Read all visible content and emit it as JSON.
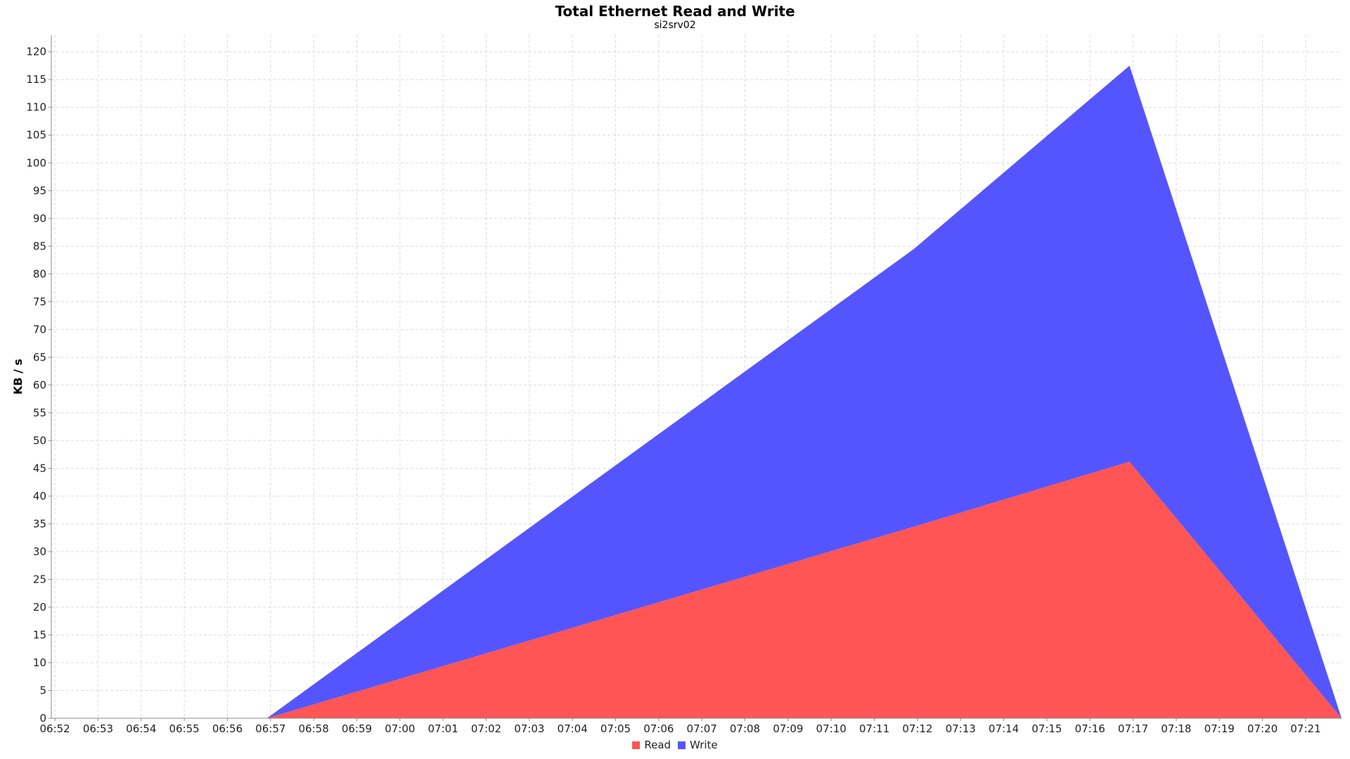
{
  "chart_data": {
    "type": "area",
    "stacked": true,
    "title": "Total Ethernet Read and Write",
    "subtitle": "si2srv02",
    "xlabel": "",
    "ylabel": "KB / s",
    "ylim": [
      0,
      123
    ],
    "yticks": [
      0,
      5,
      10,
      15,
      20,
      25,
      30,
      35,
      40,
      45,
      50,
      55,
      60,
      65,
      70,
      75,
      80,
      85,
      90,
      95,
      100,
      105,
      110,
      115,
      120
    ],
    "xticks": [
      "06:52",
      "06:53",
      "06:54",
      "06:55",
      "06:56",
      "06:57",
      "06:58",
      "06:59",
      "07:00",
      "07:01",
      "07:02",
      "07:03",
      "07:04",
      "07:05",
      "07:06",
      "07:07",
      "07:08",
      "07:09",
      "07:10",
      "07:11",
      "07:12",
      "07:13",
      "07:14",
      "07:15",
      "07:16",
      "07:17",
      "07:18",
      "07:19",
      "07:20",
      "07:21"
    ],
    "xlim": [
      "06:51:55",
      "07:21:50"
    ],
    "x": [
      "06:56:55",
      "07:11:55",
      "07:16:55",
      "07:21:50"
    ],
    "series": [
      {
        "name": "Read",
        "color": "#ff5555",
        "values": [
          0,
          34.5,
          46.2,
          0
        ]
      },
      {
        "name": "Write",
        "color": "#5555ff",
        "values": [
          0,
          50.0,
          71.3,
          0
        ]
      }
    ],
    "grid": true,
    "legend": "bottom-center"
  }
}
